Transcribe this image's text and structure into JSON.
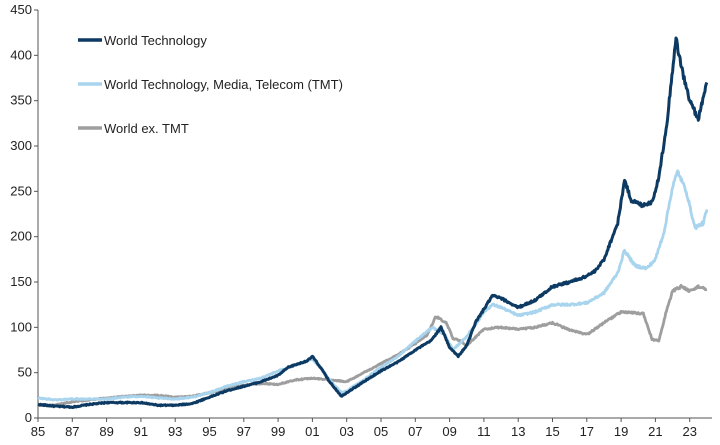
{
  "chart_data": {
    "type": "line",
    "title": "",
    "xlabel": "",
    "ylabel": "",
    "xlim": [
      1985,
      2024.3
    ],
    "ylim": [
      0,
      450
    ],
    "grid": false,
    "legend_position": "top-left",
    "x_ticks": [
      "85",
      "87",
      "89",
      "91",
      "93",
      "95",
      "97",
      "99",
      "01",
      "03",
      "05",
      "07",
      "09",
      "11",
      "13",
      "15",
      "17",
      "19",
      "21",
      "23"
    ],
    "y_ticks": [
      0,
      50,
      100,
      150,
      200,
      250,
      300,
      350,
      400,
      450
    ],
    "series": [
      {
        "name": "World Technology",
        "color": "#0d3a63",
        "x": [
          1985,
          1986,
          1987,
          1988,
          1989,
          1990,
          1991,
          1992,
          1993,
          1994,
          1995,
          1996,
          1997,
          1998,
          1999,
          1999.6,
          2000.2,
          2000.7,
          2001.0,
          2001.5,
          2002.0,
          2002.7,
          2003,
          2004,
          2005,
          2006,
          2007,
          2007.9,
          2008.5,
          2009.0,
          2009.5,
          2010,
          2010.5,
          2011,
          2011.5,
          2012,
          2013,
          2014,
          2015,
          2016,
          2016.8,
          2017.5,
          2018,
          2018.8,
          2019.2,
          2019.6,
          2020.2,
          2020.8,
          2021.2,
          2021.7,
          2022.0,
          2022.2,
          2022.6,
          2023.0,
          2023.5,
          2024.0
        ],
        "values": [
          15,
          13,
          12,
          15,
          17,
          17,
          17,
          14,
          14,
          16,
          23,
          30,
          35,
          40,
          47,
          56,
          60,
          63,
          68,
          55,
          40,
          24,
          28,
          40,
          52,
          62,
          75,
          85,
          100,
          78,
          68,
          80,
          105,
          120,
          135,
          132,
          122,
          130,
          145,
          150,
          155,
          162,
          175,
          215,
          262,
          240,
          235,
          238,
          265,
          330,
          385,
          418,
          380,
          350,
          330,
          370
        ]
      },
      {
        "name": "World Technology, Media, Telecom (TMT)",
        "color": "#a8d4ee",
        "x": [
          1985,
          1986,
          1987,
          1988,
          1989,
          1990,
          1991,
          1992,
          1993,
          1994,
          1995,
          1996,
          1997,
          1998,
          1999,
          2000.0,
          2000.5,
          2001.0,
          2001.5,
          2002.0,
          2002.7,
          2003,
          2004,
          2005,
          2006,
          2007,
          2008.0,
          2008.7,
          2009.2,
          2010,
          2010.5,
          2011,
          2011.5,
          2012,
          2013,
          2014,
          2015,
          2016,
          2017,
          2018,
          2018.8,
          2019.2,
          2019.8,
          2020.5,
          2021.0,
          2021.5,
          2022.0,
          2022.3,
          2022.8,
          2023.3,
          2023.8,
          2024.0
        ],
        "values": [
          22,
          20,
          21,
          21,
          21,
          23,
          24,
          22,
          21,
          23,
          28,
          35,
          40,
          44,
          52,
          58,
          62,
          65,
          55,
          42,
          28,
          30,
          42,
          56,
          68,
          85,
          100,
          92,
          75,
          90,
          103,
          117,
          125,
          122,
          113,
          117,
          125,
          125,
          127,
          138,
          160,
          185,
          168,
          165,
          175,
          205,
          255,
          272,
          250,
          210,
          215,
          230
        ]
      },
      {
        "name": "World ex. TMT",
        "color": "#9e9e9e",
        "x": [
          1985,
          1986,
          1987,
          1988,
          1989,
          1990,
          1991,
          1992,
          1993,
          1994,
          1995,
          1996,
          1997,
          1998,
          1999,
          2000,
          2001,
          2002,
          2003,
          2004,
          2005,
          2006,
          2007,
          2007.7,
          2008.2,
          2008.8,
          2009.2,
          2009.6,
          2010,
          2011,
          2012,
          2013,
          2014,
          2015,
          2016,
          2017,
          2018,
          2019,
          2020.3,
          2020.8,
          2021.2,
          2021.6,
          2022.0,
          2022.5,
          2023,
          2023.5,
          2024.0
        ],
        "values": [
          14,
          14,
          18,
          20,
          22,
          24,
          25,
          25,
          23,
          24,
          28,
          32,
          36,
          38,
          37,
          42,
          44,
          42,
          40,
          50,
          60,
          70,
          82,
          92,
          112,
          105,
          88,
          85,
          80,
          98,
          100,
          98,
          100,
          105,
          97,
          92,
          105,
          117,
          115,
          87,
          85,
          115,
          140,
          145,
          140,
          145,
          142
        ]
      }
    ]
  }
}
